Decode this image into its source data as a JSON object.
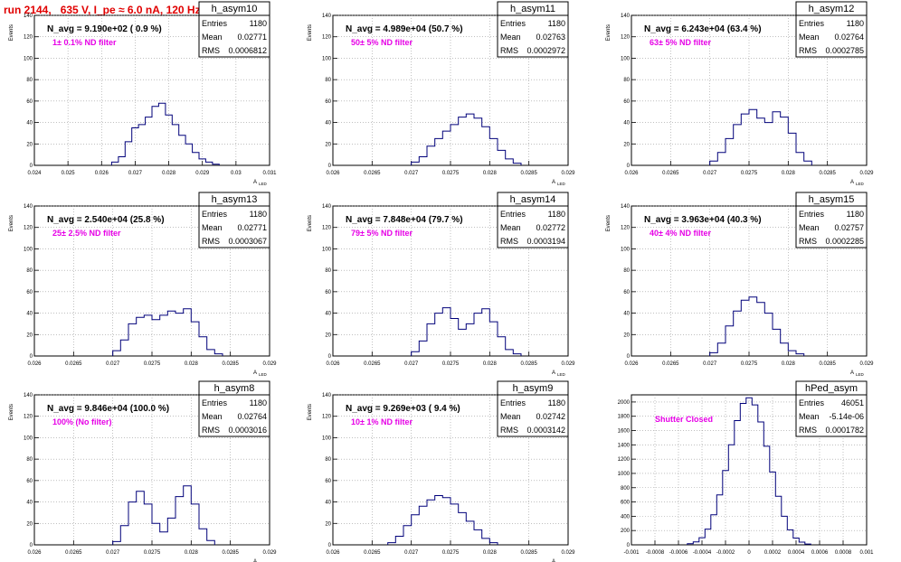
{
  "page": {
    "run_title": "run 2144,   635 V, I_pe ≈ 6.0 nA, 120 Hz",
    "colors": {
      "title": "#e00000",
      "annotation": "#e600e6",
      "histogram": "#00007a",
      "grid": "#9a9a9a"
    }
  },
  "stat_labels": {
    "entries": "Entries",
    "mean": "Mean",
    "rms": "RMS"
  },
  "chart_data": [
    {
      "type": "bar",
      "name": "h_asym10",
      "xlabel": "A_LED",
      "ylabel": "Events",
      "xlim": [
        0.024,
        0.031
      ],
      "ylim": [
        0,
        140
      ],
      "xticks": [
        "0.024",
        "0.025",
        "0.026",
        "0.027",
        "0.028",
        "0.029",
        "0.03",
        "0.031"
      ],
      "yticks": [
        "20",
        "40",
        "60",
        "80",
        "100",
        "120",
        "140"
      ],
      "navg": "N_avg = 9.190e+02 ( 0.9 %)",
      "note": "1± 0.1% ND filter",
      "stats": {
        "entries": "1180",
        "mean": "0.02771",
        "rms": "0.0006812"
      },
      "x": [
        0.0264,
        0.0266,
        0.0268,
        0.027,
        0.0272,
        0.0274,
        0.0276,
        0.0278,
        0.028,
        0.0282,
        0.0284,
        0.0286,
        0.0288,
        0.029,
        0.0292,
        0.0294
      ],
      "values": [
        3,
        8,
        22,
        35,
        38,
        45,
        55,
        58,
        47,
        38,
        28,
        20,
        12,
        6,
        3,
        1
      ]
    },
    {
      "type": "bar",
      "name": "h_asym11",
      "xlabel": "A_LED",
      "ylabel": "Events",
      "xlim": [
        0.026,
        0.029
      ],
      "ylim": [
        0,
        140
      ],
      "xticks": [
        "0.026",
        "0.0265",
        "0.027",
        "0.0275",
        "0.028",
        "0.0285",
        "0.029"
      ],
      "yticks": [
        "20",
        "40",
        "60",
        "80",
        "100",
        "120",
        "140"
      ],
      "navg": "N_avg = 4.989e+04 (50.7 %)",
      "note": "50± 5% ND filter",
      "stats": {
        "entries": "1180",
        "mean": "0.02763",
        "rms": "0.0002972"
      },
      "x": [
        0.02705,
        0.02715,
        0.02725,
        0.02735,
        0.02745,
        0.02755,
        0.02765,
        0.02775,
        0.02785,
        0.02795,
        0.02805,
        0.02815,
        0.02825,
        0.02835
      ],
      "values": [
        3,
        8,
        18,
        25,
        32,
        38,
        45,
        48,
        44,
        36,
        25,
        14,
        6,
        2
      ]
    },
    {
      "type": "bar",
      "name": "h_asym12",
      "xlabel": "A_LED",
      "ylabel": "Events",
      "xlim": [
        0.026,
        0.029
      ],
      "ylim": [
        0,
        140
      ],
      "xticks": [
        "0.026",
        "0.0265",
        "0.027",
        "0.0275",
        "0.028",
        "0.0285",
        "0.029"
      ],
      "yticks": [
        "20",
        "40",
        "60",
        "80",
        "100",
        "120",
        "140"
      ],
      "navg": "N_avg = 6.243e+04 (63.4 %)",
      "note": "63± 5% ND filter",
      "stats": {
        "entries": "1180",
        "mean": "0.02764",
        "rms": "0.0002785"
      },
      "x": [
        0.02705,
        0.02715,
        0.02725,
        0.02735,
        0.02745,
        0.02755,
        0.02765,
        0.02775,
        0.02785,
        0.02795,
        0.02805,
        0.02815,
        0.02825
      ],
      "values": [
        4,
        12,
        25,
        38,
        48,
        52,
        44,
        40,
        50,
        45,
        30,
        12,
        4
      ]
    },
    {
      "type": "bar",
      "name": "h_asym13",
      "xlabel": "A_LED",
      "ylabel": "Events",
      "xlim": [
        0.026,
        0.029
      ],
      "ylim": [
        0,
        140
      ],
      "xticks": [
        "0.026",
        "0.0265",
        "0.027",
        "0.0275",
        "0.028",
        "0.0285",
        "0.029"
      ],
      "yticks": [
        "20",
        "40",
        "60",
        "80",
        "100",
        "120",
        "140"
      ],
      "navg": "N_avg = 2.540e+04 (25.8 %)",
      "note": "25± 2.5% ND filter",
      "stats": {
        "entries": "1180",
        "mean": "0.02771",
        "rms": "0.0003067"
      },
      "x": [
        0.02705,
        0.02715,
        0.02725,
        0.02735,
        0.02745,
        0.02755,
        0.02765,
        0.02775,
        0.02785,
        0.02795,
        0.02805,
        0.02815,
        0.02825,
        0.02835
      ],
      "values": [
        5,
        15,
        30,
        36,
        38,
        34,
        38,
        42,
        40,
        44,
        32,
        18,
        6,
        2
      ]
    },
    {
      "type": "bar",
      "name": "h_asym14",
      "xlabel": "A_LED",
      "ylabel": "Events",
      "xlim": [
        0.026,
        0.029
      ],
      "ylim": [
        0,
        140
      ],
      "xticks": [
        "0.026",
        "0.0265",
        "0.027",
        "0.0275",
        "0.028",
        "0.0285",
        "0.029"
      ],
      "yticks": [
        "20",
        "40",
        "60",
        "80",
        "100",
        "120",
        "140"
      ],
      "navg": "N_avg = 7.848e+04 (79.7 %)",
      "note": "79± 5% ND filter",
      "stats": {
        "entries": "1180",
        "mean": "0.02772",
        "rms": "0.0003194"
      },
      "x": [
        0.02705,
        0.02715,
        0.02725,
        0.02735,
        0.02745,
        0.02755,
        0.02765,
        0.02775,
        0.02785,
        0.02795,
        0.02805,
        0.02815,
        0.02825,
        0.02835
      ],
      "values": [
        4,
        14,
        30,
        40,
        45,
        35,
        25,
        30,
        40,
        44,
        32,
        18,
        6,
        2
      ]
    },
    {
      "type": "bar",
      "name": "h_asym15",
      "xlabel": "A_LED",
      "ylabel": "Events",
      "xlim": [
        0.026,
        0.029
      ],
      "ylim": [
        0,
        140
      ],
      "xticks": [
        "0.026",
        "0.0265",
        "0.027",
        "0.0275",
        "0.028",
        "0.0285",
        "0.029"
      ],
      "yticks": [
        "20",
        "40",
        "60",
        "80",
        "100",
        "120",
        "140"
      ],
      "navg": "N_avg = 3.963e+04 (40.3 %)",
      "note": "40± 4% ND filter",
      "stats": {
        "entries": "1180",
        "mean": "0.02757",
        "rms": "0.0002285"
      },
      "x": [
        0.02705,
        0.02715,
        0.02725,
        0.02735,
        0.02745,
        0.02755,
        0.02765,
        0.02775,
        0.02785,
        0.02795,
        0.02805,
        0.02815
      ],
      "values": [
        3,
        12,
        28,
        42,
        52,
        55,
        50,
        40,
        25,
        12,
        5,
        2
      ]
    },
    {
      "type": "bar",
      "name": "h_asym8",
      "xlabel": "A_LED",
      "ylabel": "Events",
      "xlim": [
        0.026,
        0.029
      ],
      "ylim": [
        0,
        140
      ],
      "xticks": [
        "0.026",
        "0.0265",
        "0.027",
        "0.0275",
        "0.028",
        "0.0285",
        "0.029"
      ],
      "yticks": [
        "20",
        "40",
        "60",
        "80",
        "100",
        "120",
        "140"
      ],
      "navg": "N_avg = 9.846e+04 (100.0 %)",
      "note": "100% (No filter)",
      "stats": {
        "entries": "1180",
        "mean": "0.02764",
        "rms": "0.0003016"
      },
      "x": [
        0.02705,
        0.02715,
        0.02725,
        0.02735,
        0.02745,
        0.02755,
        0.02765,
        0.02775,
        0.02785,
        0.02795,
        0.02805,
        0.02815,
        0.02825
      ],
      "values": [
        3,
        18,
        40,
        50,
        38,
        20,
        12,
        25,
        45,
        55,
        38,
        15,
        4
      ]
    },
    {
      "type": "bar",
      "name": "h_asym9",
      "xlabel": "A_LED",
      "ylabel": "Events",
      "xlim": [
        0.026,
        0.029
      ],
      "ylim": [
        0,
        140
      ],
      "xticks": [
        "0.026",
        "0.0265",
        "0.027",
        "0.0275",
        "0.028",
        "0.0285",
        "0.029"
      ],
      "yticks": [
        "20",
        "40",
        "60",
        "80",
        "100",
        "120",
        "140"
      ],
      "navg": "N_avg = 9.269e+03 ( 9.4 %)",
      "note": "10± 1% ND filter",
      "stats": {
        "entries": "1180",
        "mean": "0.02742",
        "rms": "0.0003142"
      },
      "x": [
        0.02675,
        0.02685,
        0.02695,
        0.02705,
        0.02715,
        0.02725,
        0.02735,
        0.02745,
        0.02755,
        0.02765,
        0.02775,
        0.02785,
        0.02795,
        0.02805
      ],
      "values": [
        2,
        8,
        18,
        28,
        36,
        42,
        46,
        44,
        38,
        30,
        22,
        14,
        6,
        2
      ]
    },
    {
      "type": "bar",
      "name": "hPed_asym",
      "xlabel": "",
      "ylabel": "",
      "xlim": [
        -0.001,
        0.001
      ],
      "ylim": [
        0,
        2100
      ],
      "xticks": [
        "-0.001",
        "-0.0008",
        "-0.0006",
        "-0.0004",
        "-0.0002",
        "0",
        "0.0002",
        "0.0004",
        "0.0006",
        "0.0008",
        "0.001"
      ],
      "yticks": [
        "200",
        "400",
        "600",
        "800",
        "1000",
        "1200",
        "1400",
        "1600",
        "1800",
        "2000"
      ],
      "navg": "",
      "note": "Shutter Closed",
      "stats": {
        "entries": "46051",
        "mean": "-5.14e-06",
        "rms": "0.0001782"
      },
      "x": [
        -0.0005,
        -0.00045,
        -0.0004,
        -0.00035,
        -0.0003,
        -0.00025,
        -0.0002,
        -0.00015,
        -0.0001,
        -5e-05,
        0,
        5e-05,
        0.0001,
        0.00015,
        0.0002,
        0.00025,
        0.0003,
        0.00035,
        0.0004,
        0.00045,
        0.0005
      ],
      "values": [
        15,
        40,
        100,
        220,
        420,
        700,
        1040,
        1400,
        1740,
        1980,
        2060,
        1960,
        1720,
        1380,
        1020,
        680,
        400,
        210,
        95,
        38,
        12
      ]
    }
  ]
}
